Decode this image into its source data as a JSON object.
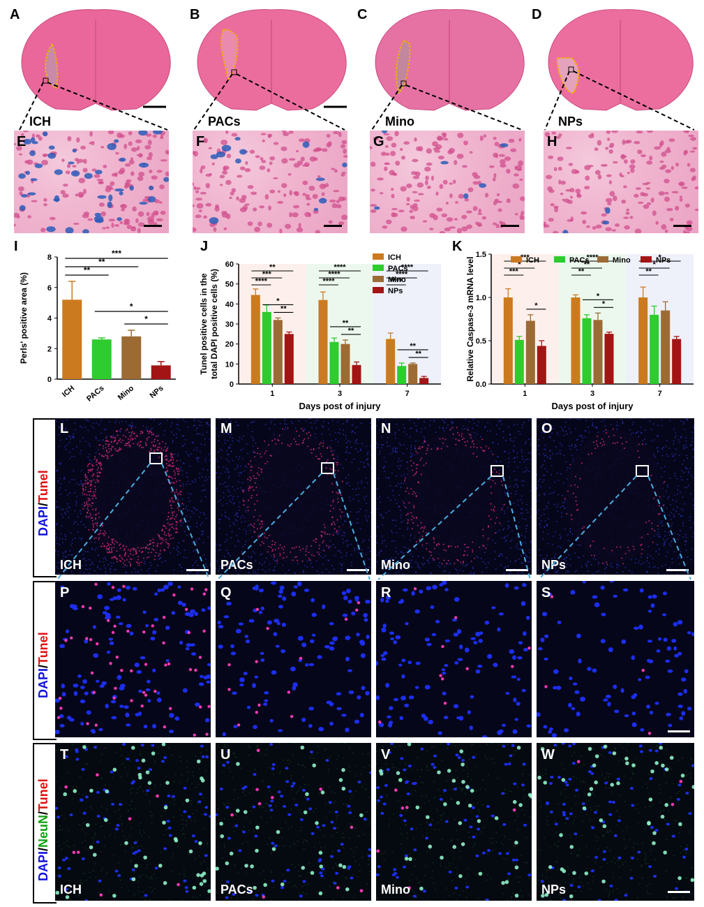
{
  "panel_letters": {
    "A": "A",
    "B": "B",
    "C": "C",
    "D": "D",
    "E": "E",
    "F": "F",
    "G": "G",
    "H": "H",
    "I": "I",
    "J": "J",
    "K": "K",
    "L": "L",
    "M": "M",
    "N": "N",
    "O": "O",
    "P": "P",
    "Q": "Q",
    "R": "R",
    "S": "S",
    "T": "T",
    "U": "U",
    "V": "V",
    "W": "W"
  },
  "groups": {
    "ich": "ICH",
    "pacs": "PACs",
    "mino": "Mino",
    "nps": "NPs"
  },
  "stain_labels": {
    "dapi": "DAPI",
    "slash": "/",
    "tunel": "Tunel",
    "neun": "NeuN"
  },
  "colors": {
    "ich": "#cc7a1f",
    "pacs": "#2ecc2e",
    "mino": "#9c6b34",
    "nps": "#a31515"
  },
  "chart_data": [
    {
      "type": "bar",
      "id": "I",
      "categories": [
        "ICH",
        "PACs",
        "Mino",
        "NPs"
      ],
      "values": [
        5.2,
        2.6,
        2.8,
        0.9
      ],
      "errors": [
        1.2,
        0.1,
        0.4,
        0.25
      ],
      "ylabel": "Perls' positive area (%)",
      "ylim": [
        0,
        8
      ],
      "yticks": [
        "0",
        "2",
        "4",
        "6",
        "8"
      ],
      "significance": [
        {
          "from": 0,
          "to": 1,
          "label": "**"
        },
        {
          "from": 0,
          "to": 2,
          "label": "**"
        },
        {
          "from": 0,
          "to": 3,
          "label": "***"
        },
        {
          "from": 1,
          "to": 3,
          "label": "*"
        },
        {
          "from": 2,
          "to": 3,
          "label": "*"
        }
      ]
    },
    {
      "type": "bar",
      "id": "J",
      "categories": [
        "1",
        "3",
        "7"
      ],
      "series": [
        {
          "name": "ICH",
          "values": [
            44.5,
            42,
            22.5
          ],
          "errors": [
            3,
            4,
            3
          ]
        },
        {
          "name": "PACs",
          "values": [
            36,
            21,
            9
          ],
          "errors": [
            3.5,
            2,
            1.5
          ]
        },
        {
          "name": "Mino",
          "values": [
            32,
            20,
            10
          ],
          "errors": [
            1,
            2,
            0.5
          ]
        },
        {
          "name": "NPs",
          "values": [
            25,
            9.5,
            3
          ],
          "errors": [
            1,
            1.5,
            0.8
          ]
        }
      ],
      "xlabel": "Days post of injury",
      "ylabel": "Tunel positive cells in the total DAPI positive cells (%)",
      "ylim": [
        0,
        60
      ],
      "yticks": [
        "0",
        "10",
        "20",
        "30",
        "40",
        "50",
        "60"
      ],
      "significance": [
        {
          "day": 0,
          "labels": [
            "****",
            "***",
            "**",
            "**",
            "*"
          ]
        },
        {
          "day": 1,
          "labels": [
            "****",
            "****",
            "****",
            "**",
            "**"
          ]
        },
        {
          "day": 2,
          "labels": [
            "****",
            "****",
            "****",
            "**",
            "**"
          ]
        }
      ]
    },
    {
      "type": "bar",
      "id": "K",
      "categories": [
        "1",
        "3",
        "7"
      ],
      "series": [
        {
          "name": "ICH",
          "values": [
            1.0,
            1.0,
            1.0
          ],
          "errors": [
            0.1,
            0.03,
            0.12
          ]
        },
        {
          "name": "PACs",
          "values": [
            0.51,
            0.76,
            0.8
          ],
          "errors": [
            0.04,
            0.04,
            0.1
          ]
        },
        {
          "name": "Mino",
          "values": [
            0.73,
            0.74,
            0.85
          ],
          "errors": [
            0.07,
            0.08,
            0.1
          ]
        },
        {
          "name": "NPs",
          "values": [
            0.44,
            0.58,
            0.52
          ],
          "errors": [
            0.06,
            0.02,
            0.03
          ]
        }
      ],
      "xlabel": "Days post of injury",
      "ylabel": "Relative Caspase-3 mRNA level",
      "ylim": [
        0,
        1.5
      ],
      "yticks": [
        "0.0",
        "0.5",
        "1.0",
        "1.5"
      ],
      "significance": [
        {
          "day": 0,
          "labels": [
            "***",
            "*",
            "***",
            "*"
          ]
        },
        {
          "day": 1,
          "labels": [
            "**",
            "**",
            "****",
            "*",
            "*"
          ]
        },
        {
          "day": 2,
          "labels": [
            "**",
            "*",
            "*"
          ]
        }
      ]
    }
  ]
}
